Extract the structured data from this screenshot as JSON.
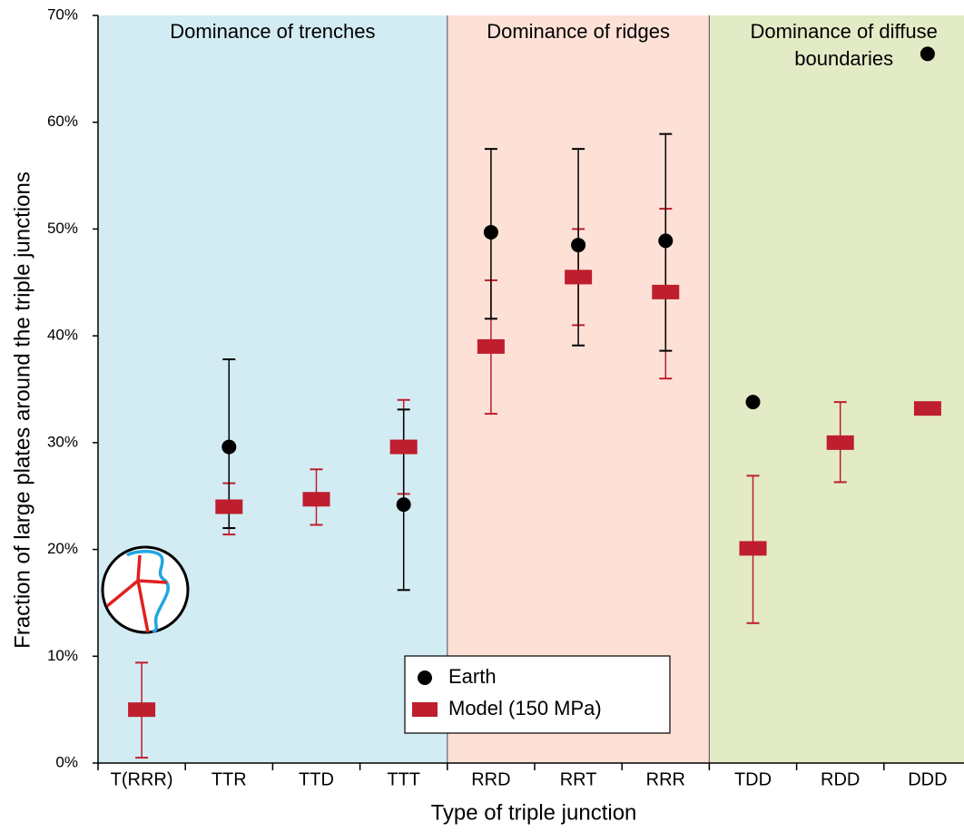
{
  "chart_data": {
    "type": "errorbar",
    "xlabel": "Type of triple junction",
    "ylabel": "Fraction of large plates around the triple junctions",
    "categories": [
      "T(RRR)",
      "TTR",
      "TTD",
      "TTT",
      "RRD",
      "RRT",
      "RRR",
      "TDD",
      "RDD",
      "DDD"
    ],
    "series": [
      {
        "name": "Earth",
        "color": "#000000",
        "marker": "circle",
        "values": [
          null,
          29.6,
          null,
          24.2,
          49.7,
          48.5,
          48.9,
          33.8,
          null,
          66.4
        ],
        "err_plus": [
          null,
          8.2,
          null,
          8.9,
          7.8,
          9.0,
          10.0,
          null,
          null,
          null
        ],
        "err_minus": [
          null,
          7.6,
          null,
          8.0,
          8.1,
          9.4,
          10.3,
          null,
          null,
          null
        ]
      },
      {
        "name": "Model  (150 MPa)",
        "color": "#be1e2d",
        "marker": "rect",
        "values": [
          5.0,
          24.0,
          24.7,
          29.6,
          39.0,
          45.5,
          44.1,
          20.1,
          30.0,
          33.2
        ],
        "err_plus": [
          4.4,
          2.2,
          2.8,
          4.4,
          6.2,
          4.5,
          7.8,
          6.8,
          3.8,
          null
        ],
        "err_minus": [
          4.5,
          2.6,
          2.4,
          4.4,
          6.3,
          4.5,
          8.1,
          7.0,
          3.7,
          null
        ]
      }
    ],
    "regions": [
      {
        "label": [
          "Dominance of trenches"
        ],
        "from": "T(RRR)",
        "to": "TTT",
        "color": "#d3ecf3"
      },
      {
        "label": [
          "Dominance of ridges"
        ],
        "from": "RRD",
        "to": "RRR",
        "color": "#fde0d6"
      },
      {
        "label": [
          "Dominance of diffuse",
          "boundaries"
        ],
        "from": "TDD",
        "to": "DDD",
        "color": "#e2ebc5"
      }
    ],
    "ylim": [
      0,
      70
    ],
    "yticks": [
      {
        "value": 0,
        "label": "0%"
      },
      {
        "value": 10,
        "label": "10%"
      },
      {
        "value": 20,
        "label": "20%"
      },
      {
        "value": 30,
        "label": "30%"
      },
      {
        "value": 40,
        "label": "40%"
      },
      {
        "value": 50,
        "label": "50%"
      },
      {
        "value": 60,
        "label": "60%"
      },
      {
        "value": 70,
        "label": "70%"
      }
    ],
    "legend": "lower center"
  }
}
